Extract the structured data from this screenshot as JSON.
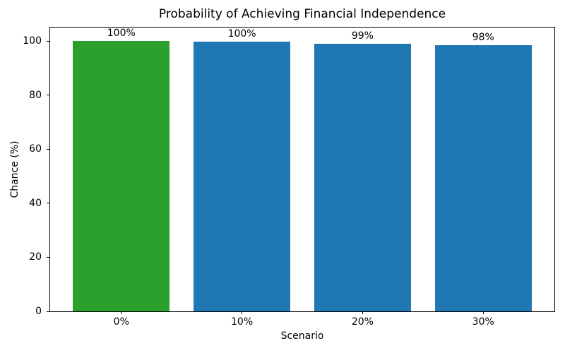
{
  "chart_data": {
    "type": "bar",
    "title": "Probability of Achieving Financial Independence",
    "xlabel": "Scenario",
    "ylabel": "Chance (%)",
    "categories": [
      "0%",
      "10%",
      "20%",
      "30%"
    ],
    "values": [
      100,
      99.9,
      99.1,
      98.4
    ],
    "bar_labels": [
      "100%",
      "100%",
      "99%",
      "98%"
    ],
    "bar_colors": [
      "#2ca02c",
      "#1f77b4",
      "#1f77b4",
      "#1f77b4"
    ],
    "ylim": [
      0,
      105
    ],
    "yticks": [
      0,
      20,
      40,
      60,
      80,
      100
    ],
    "grid": false,
    "legend": "none",
    "frame_color": "#000000",
    "background_color": "#ffffff"
  }
}
